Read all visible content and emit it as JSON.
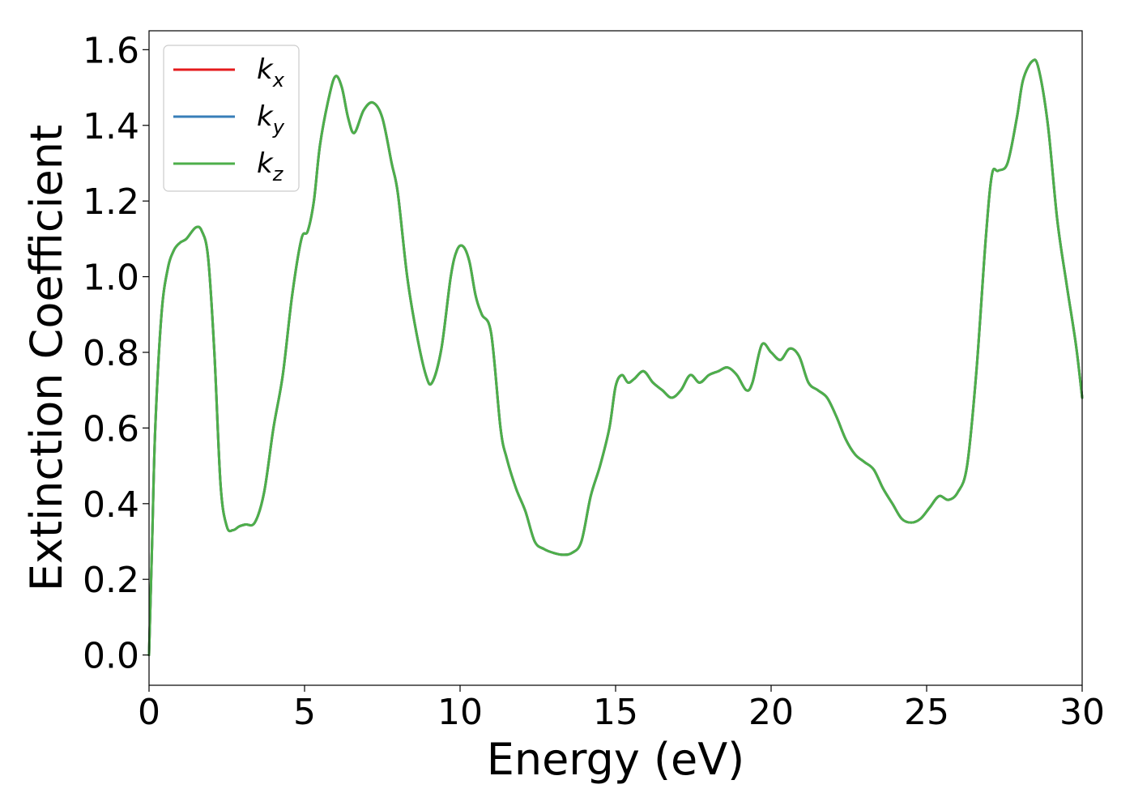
{
  "chart_data": {
    "type": "line",
    "xlabel": "Energy (eV)",
    "ylabel": "Extinction Coefficient",
    "xlim": [
      0,
      30
    ],
    "ylim": [
      -0.08,
      1.65
    ],
    "xticks": [
      0,
      5,
      10,
      15,
      20,
      25,
      30
    ],
    "yticks": [
      0.0,
      0.2,
      0.4,
      0.6,
      0.8,
      1.0,
      1.2,
      1.4,
      1.6
    ],
    "xtick_labels": [
      "0",
      "5",
      "10",
      "15",
      "20",
      "25",
      "30"
    ],
    "ytick_labels": [
      "0.0",
      "0.2",
      "0.4",
      "0.6",
      "0.8",
      "1.0",
      "1.2",
      "1.4",
      "1.6"
    ],
    "grid": false,
    "legend_position": "top-left",
    "x": [
      0,
      0.1,
      0.2,
      0.4,
      0.6,
      0.8,
      1.0,
      1.2,
      1.5,
      1.7,
      1.9,
      2.1,
      2.3,
      2.5,
      2.7,
      2.9,
      3.1,
      3.4,
      3.7,
      4.0,
      4.3,
      4.6,
      4.9,
      5.1,
      5.3,
      5.5,
      5.8,
      6.0,
      6.2,
      6.4,
      6.6,
      6.9,
      7.2,
      7.5,
      7.8,
      8.0,
      8.3,
      8.6,
      8.9,
      9.1,
      9.4,
      9.7,
      9.9,
      10.1,
      10.3,
      10.5,
      10.7,
      11.0,
      11.3,
      11.5,
      11.8,
      12.1,
      12.4,
      12.7,
      13.0,
      13.3,
      13.6,
      13.9,
      14.2,
      14.5,
      14.8,
      15.0,
      15.2,
      15.4,
      15.6,
      15.9,
      16.2,
      16.5,
      16.8,
      17.1,
      17.4,
      17.7,
      18.0,
      18.3,
      18.6,
      18.9,
      19.2,
      19.4,
      19.7,
      20.0,
      20.3,
      20.6,
      20.9,
      21.2,
      21.5,
      21.8,
      22.1,
      22.4,
      22.7,
      23.0,
      23.3,
      23.6,
      23.9,
      24.2,
      24.5,
      24.8,
      25.1,
      25.4,
      25.7,
      26.0,
      26.3,
      26.6,
      26.9,
      27.1,
      27.3,
      27.6,
      27.9,
      28.1,
      28.4,
      28.6,
      28.9,
      29.2,
      29.5,
      29.8,
      30.0
    ],
    "series": [
      {
        "name": "k_x",
        "label_main": "k",
        "label_sub": "x",
        "color": "#e41a1c",
        "values": [
          0.0,
          0.3,
          0.6,
          0.9,
          1.02,
          1.07,
          1.09,
          1.1,
          1.13,
          1.12,
          1.05,
          0.8,
          0.45,
          0.34,
          0.33,
          0.34,
          0.345,
          0.35,
          0.43,
          0.6,
          0.74,
          0.95,
          1.1,
          1.12,
          1.2,
          1.35,
          1.48,
          1.53,
          1.5,
          1.42,
          1.38,
          1.44,
          1.46,
          1.42,
          1.3,
          1.22,
          1.0,
          0.85,
          0.74,
          0.72,
          0.81,
          1.0,
          1.07,
          1.08,
          1.04,
          0.95,
          0.9,
          0.85,
          0.6,
          0.52,
          0.44,
          0.38,
          0.3,
          0.28,
          0.27,
          0.265,
          0.27,
          0.3,
          0.42,
          0.5,
          0.6,
          0.71,
          0.74,
          0.72,
          0.73,
          0.75,
          0.72,
          0.7,
          0.68,
          0.7,
          0.74,
          0.72,
          0.74,
          0.75,
          0.76,
          0.74,
          0.7,
          0.72,
          0.82,
          0.8,
          0.78,
          0.81,
          0.79,
          0.72,
          0.7,
          0.68,
          0.63,
          0.57,
          0.53,
          0.51,
          0.49,
          0.44,
          0.4,
          0.36,
          0.35,
          0.36,
          0.39,
          0.42,
          0.41,
          0.43,
          0.5,
          0.75,
          1.1,
          1.27,
          1.28,
          1.3,
          1.42,
          1.52,
          1.57,
          1.55,
          1.4,
          1.15,
          0.98,
          0.82,
          0.68
        ]
      },
      {
        "name": "k_y",
        "label_main": "k",
        "label_sub": "y",
        "color": "#377eb8",
        "values": [
          0.0,
          0.3,
          0.6,
          0.9,
          1.02,
          1.07,
          1.09,
          1.1,
          1.13,
          1.12,
          1.05,
          0.8,
          0.45,
          0.34,
          0.33,
          0.34,
          0.345,
          0.35,
          0.43,
          0.6,
          0.74,
          0.95,
          1.1,
          1.12,
          1.2,
          1.35,
          1.48,
          1.53,
          1.5,
          1.42,
          1.38,
          1.44,
          1.46,
          1.42,
          1.3,
          1.22,
          1.0,
          0.85,
          0.74,
          0.72,
          0.81,
          1.0,
          1.07,
          1.08,
          1.04,
          0.95,
          0.9,
          0.85,
          0.6,
          0.52,
          0.44,
          0.38,
          0.3,
          0.28,
          0.27,
          0.265,
          0.27,
          0.3,
          0.42,
          0.5,
          0.6,
          0.71,
          0.74,
          0.72,
          0.73,
          0.75,
          0.72,
          0.7,
          0.68,
          0.7,
          0.74,
          0.72,
          0.74,
          0.75,
          0.76,
          0.74,
          0.7,
          0.72,
          0.82,
          0.8,
          0.78,
          0.81,
          0.79,
          0.72,
          0.7,
          0.68,
          0.63,
          0.57,
          0.53,
          0.51,
          0.49,
          0.44,
          0.4,
          0.36,
          0.35,
          0.36,
          0.39,
          0.42,
          0.41,
          0.43,
          0.5,
          0.75,
          1.1,
          1.27,
          1.28,
          1.3,
          1.42,
          1.52,
          1.57,
          1.55,
          1.4,
          1.15,
          0.98,
          0.82,
          0.68
        ]
      },
      {
        "name": "k_z",
        "label_main": "k",
        "label_sub": "z",
        "color": "#4daf4a",
        "values": [
          0.0,
          0.3,
          0.6,
          0.9,
          1.02,
          1.07,
          1.09,
          1.1,
          1.13,
          1.12,
          1.05,
          0.8,
          0.45,
          0.34,
          0.33,
          0.34,
          0.345,
          0.35,
          0.43,
          0.6,
          0.74,
          0.95,
          1.1,
          1.12,
          1.2,
          1.35,
          1.48,
          1.53,
          1.5,
          1.42,
          1.38,
          1.44,
          1.46,
          1.42,
          1.3,
          1.22,
          1.0,
          0.85,
          0.74,
          0.72,
          0.81,
          1.0,
          1.07,
          1.08,
          1.04,
          0.95,
          0.9,
          0.85,
          0.6,
          0.52,
          0.44,
          0.38,
          0.3,
          0.28,
          0.27,
          0.265,
          0.27,
          0.3,
          0.42,
          0.5,
          0.6,
          0.71,
          0.74,
          0.72,
          0.73,
          0.75,
          0.72,
          0.7,
          0.68,
          0.7,
          0.74,
          0.72,
          0.74,
          0.75,
          0.76,
          0.74,
          0.7,
          0.72,
          0.82,
          0.8,
          0.78,
          0.81,
          0.79,
          0.72,
          0.7,
          0.68,
          0.63,
          0.57,
          0.53,
          0.51,
          0.49,
          0.44,
          0.4,
          0.36,
          0.35,
          0.36,
          0.39,
          0.42,
          0.41,
          0.43,
          0.5,
          0.75,
          1.1,
          1.27,
          1.28,
          1.3,
          1.42,
          1.52,
          1.57,
          1.55,
          1.4,
          1.15,
          0.98,
          0.82,
          0.68
        ]
      }
    ]
  }
}
